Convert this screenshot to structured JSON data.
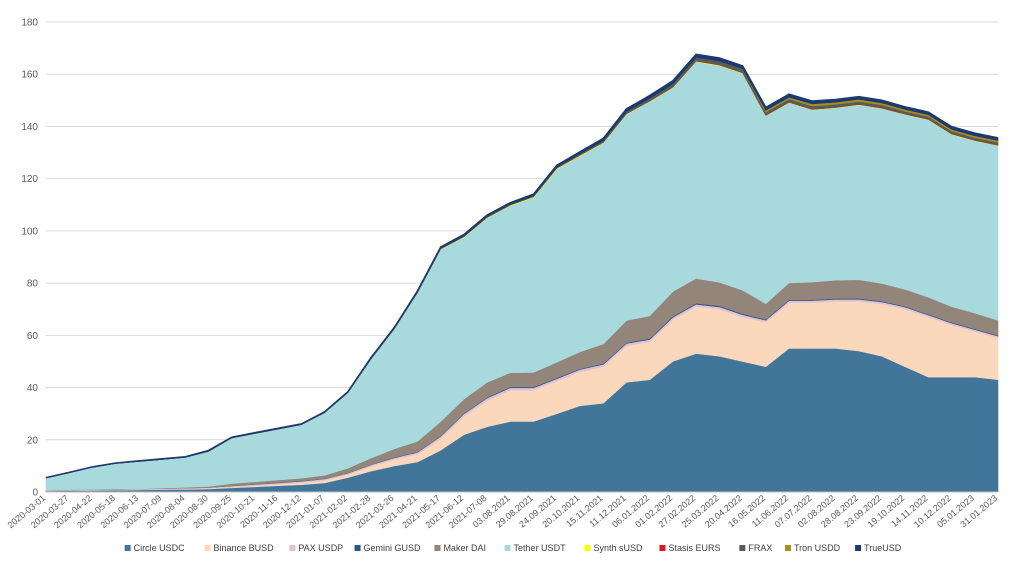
{
  "chart_data": {
    "type": "area",
    "stacked": true,
    "ylim": [
      0,
      180
    ],
    "yticks": [
      0,
      20,
      40,
      60,
      80,
      100,
      120,
      140,
      160,
      180
    ],
    "grid": true,
    "legend_position": "bottom",
    "x_labels": [
      "2020-03-01",
      "2020-03-27",
      "2020-04-22",
      "2020-05-18",
      "2020-06-13",
      "2020-07-09",
      "2020-08-04",
      "2020-08-30",
      "2020-09-25",
      "2020-10-21",
      "2020-11-16",
      "2020-12-12",
      "2021-01-07",
      "2021-02-02",
      "2021-02-28",
      "2021-03-26",
      "2021-04-21",
      "2021-05-17",
      "2021-06-12",
      "2021-07-08",
      "03.08.2021",
      "29.08.2021",
      "24.09.2021",
      "20.10.2021",
      "15.11.2021",
      "11.12.2021",
      "06.01.2022",
      "01.02.2022",
      "27.02.2022",
      "25.03.2022",
      "20.04.2022",
      "16.05.2022",
      "11.06.2022",
      "07.07.2022",
      "02.08.2022",
      "28.08.2022",
      "23.09.2022",
      "19.10.2022",
      "14.11.2022",
      "10.12.2022",
      "05.01.2023",
      "31.01.2023"
    ],
    "series": [
      {
        "name": "Circle USDC",
        "color": "#41769a",
        "values": [
          0.4,
          0.5,
          0.6,
          0.7,
          0.8,
          0.9,
          1.0,
          1.2,
          1.6,
          2.0,
          2.4,
          2.8,
          3.5,
          5.5,
          8.0,
          10.0,
          11.5,
          16.0,
          22.0,
          25.0,
          27.0,
          27.0,
          30.0,
          33.0,
          34.0,
          42.0,
          43.0,
          50.0,
          53.0,
          52.0,
          50.0,
          48.0,
          55.0,
          55.0,
          55.0,
          54.0,
          52.0,
          48.0,
          44.0,
          44.0,
          44.0,
          43.0
        ]
      },
      {
        "name": "Binance BUSD",
        "color": "#fbd7bb",
        "values": [
          0.1,
          0.1,
          0.1,
          0.1,
          0.1,
          0.1,
          0.2,
          0.2,
          0.3,
          0.4,
          0.6,
          0.8,
          1.0,
          1.2,
          1.8,
          2.5,
          3.0,
          4.5,
          7.0,
          10.0,
          12.0,
          12.0,
          12.5,
          13.0,
          14.0,
          14.0,
          14.5,
          16.0,
          18.0,
          18.0,
          17.0,
          17.0,
          17.5,
          17.5,
          18.0,
          19.0,
          20.0,
          22.0,
          23.0,
          20.0,
          17.5,
          16.0
        ]
      },
      {
        "name": "PAX USDP",
        "color": "#e0c3d1",
        "values": [
          0.2,
          0.2,
          0.2,
          0.2,
          0.2,
          0.3,
          0.3,
          0.3,
          0.4,
          0.5,
          0.5,
          0.5,
          0.5,
          0.5,
          0.6,
          0.6,
          0.7,
          0.8,
          0.9,
          1.0,
          0.9,
          0.9,
          0.9,
          0.9,
          0.9,
          0.9,
          0.9,
          0.9,
          0.9,
          0.9,
          0.9,
          0.8,
          0.8,
          0.8,
          0.8,
          0.8,
          0.8,
          0.8,
          0.8,
          0.7,
          0.7,
          0.7
        ]
      },
      {
        "name": "Gemini GUSD",
        "color": "#26568a",
        "values": [
          0.0,
          0.0,
          0.0,
          0.0,
          0.0,
          0.0,
          0.0,
          0.0,
          0.1,
          0.1,
          0.1,
          0.1,
          0.1,
          0.1,
          0.1,
          0.2,
          0.2,
          0.2,
          0.2,
          0.3,
          0.3,
          0.3,
          0.3,
          0.3,
          0.3,
          0.3,
          0.4,
          0.4,
          0.4,
          0.4,
          0.4,
          0.3,
          0.3,
          0.3,
          0.3,
          0.3,
          0.3,
          0.3,
          0.3,
          0.3,
          0.3,
          0.3
        ]
      },
      {
        "name": "Maker DAI",
        "color": "#93857a",
        "values": [
          0.1,
          0.1,
          0.1,
          0.1,
          0.1,
          0.2,
          0.3,
          0.4,
          0.8,
          0.9,
          1.0,
          1.1,
          1.3,
          1.8,
          2.5,
          3.2,
          4.0,
          5.5,
          5.5,
          5.7,
          5.5,
          5.6,
          6.0,
          6.5,
          7.5,
          8.5,
          8.7,
          9.5,
          9.5,
          9.0,
          9.0,
          6.0,
          6.5,
          6.8,
          7.0,
          7.2,
          6.8,
          6.5,
          6.5,
          6.0,
          6.0,
          5.7
        ]
      },
      {
        "name": "Tether USDT",
        "color": "#a8d9dc",
        "values": [
          4.6,
          6.5,
          8.5,
          9.8,
          10.5,
          11.0,
          11.5,
          13.5,
          17.5,
          18.5,
          19.5,
          20.5,
          24.0,
          29.0,
          38.0,
          46.0,
          57.0,
          66.0,
          62.0,
          63.0,
          64.0,
          67.0,
          74.0,
          75.0,
          77.0,
          79.0,
          82.0,
          78.0,
          83.0,
          83.0,
          83.0,
          72.0,
          69.0,
          66.0,
          66.0,
          67.0,
          67.0,
          67.0,
          68.0,
          66.0,
          66.0,
          67.0
        ]
      },
      {
        "name": "Synth sUSD",
        "color": "#fffb00",
        "values": [
          0,
          0,
          0,
          0,
          0,
          0,
          0,
          0,
          0,
          0,
          0,
          0,
          0,
          0,
          0,
          0,
          0,
          0.1,
          0.2,
          0.2,
          0.2,
          0.3,
          0.3,
          0.3,
          0.2,
          0.2,
          0.2,
          0.2,
          0.2,
          0.2,
          0.2,
          0.1,
          0.1,
          0.1,
          0.1,
          0.1,
          0.1,
          0.1,
          0.1,
          0.1,
          0.1,
          0.1
        ]
      },
      {
        "name": "Stasis EURS",
        "color": "#e8111a",
        "values": [
          0,
          0,
          0,
          0,
          0,
          0,
          0,
          0,
          0,
          0,
          0,
          0,
          0,
          0,
          0,
          0,
          0,
          0,
          0,
          0,
          0,
          0,
          0,
          0,
          0,
          0,
          0,
          0.1,
          0.1,
          0.1,
          0.1,
          0.1,
          0.1,
          0.1,
          0.1,
          0.1,
          0.1,
          0.1,
          0.1,
          0.1,
          0.1,
          0.1
        ]
      },
      {
        "name": "FRAX",
        "color": "#5a5a5a",
        "values": [
          0,
          0,
          0,
          0,
          0,
          0,
          0,
          0,
          0,
          0,
          0,
          0,
          0,
          0,
          0.1,
          0.1,
          0.1,
          0.2,
          0.2,
          0.3,
          0.3,
          0.3,
          0.4,
          0.5,
          0.6,
          0.8,
          1.0,
          1.2,
          1.3,
          1.4,
          1.3,
          1.2,
          1.2,
          1.2,
          1.2,
          1.1,
          1.1,
          1.0,
          1.0,
          1.0,
          1.0,
          1.0
        ]
      },
      {
        "name": "Tron USDD",
        "color": "#a88c1e",
        "values": [
          0,
          0,
          0,
          0,
          0,
          0,
          0,
          0,
          0,
          0,
          0,
          0,
          0,
          0,
          0,
          0,
          0,
          0,
          0,
          0,
          0,
          0,
          0,
          0,
          0,
          0,
          0,
          0,
          0,
          0,
          0.1,
          0.7,
          0.7,
          0.8,
          0.8,
          0.8,
          0.8,
          0.7,
          0.7,
          0.7,
          0.7,
          0.7
        ]
      },
      {
        "name": "TrueUSD",
        "color": "#1a3a70",
        "values": [
          0.1,
          0.1,
          0.1,
          0.2,
          0.2,
          0.2,
          0.2,
          0.3,
          0.3,
          0.3,
          0.3,
          0.3,
          0.3,
          0.3,
          0.4,
          0.4,
          0.5,
          0.5,
          0.6,
          0.6,
          0.6,
          0.7,
          0.7,
          0.8,
          0.9,
          1.0,
          1.1,
          1.2,
          1.2,
          1.2,
          1.2,
          1.1,
          1.1,
          1.1,
          1.0,
          1.0,
          1.0,
          1.0,
          1.0,
          1.0,
          1.0,
          1.0
        ]
      }
    ]
  }
}
